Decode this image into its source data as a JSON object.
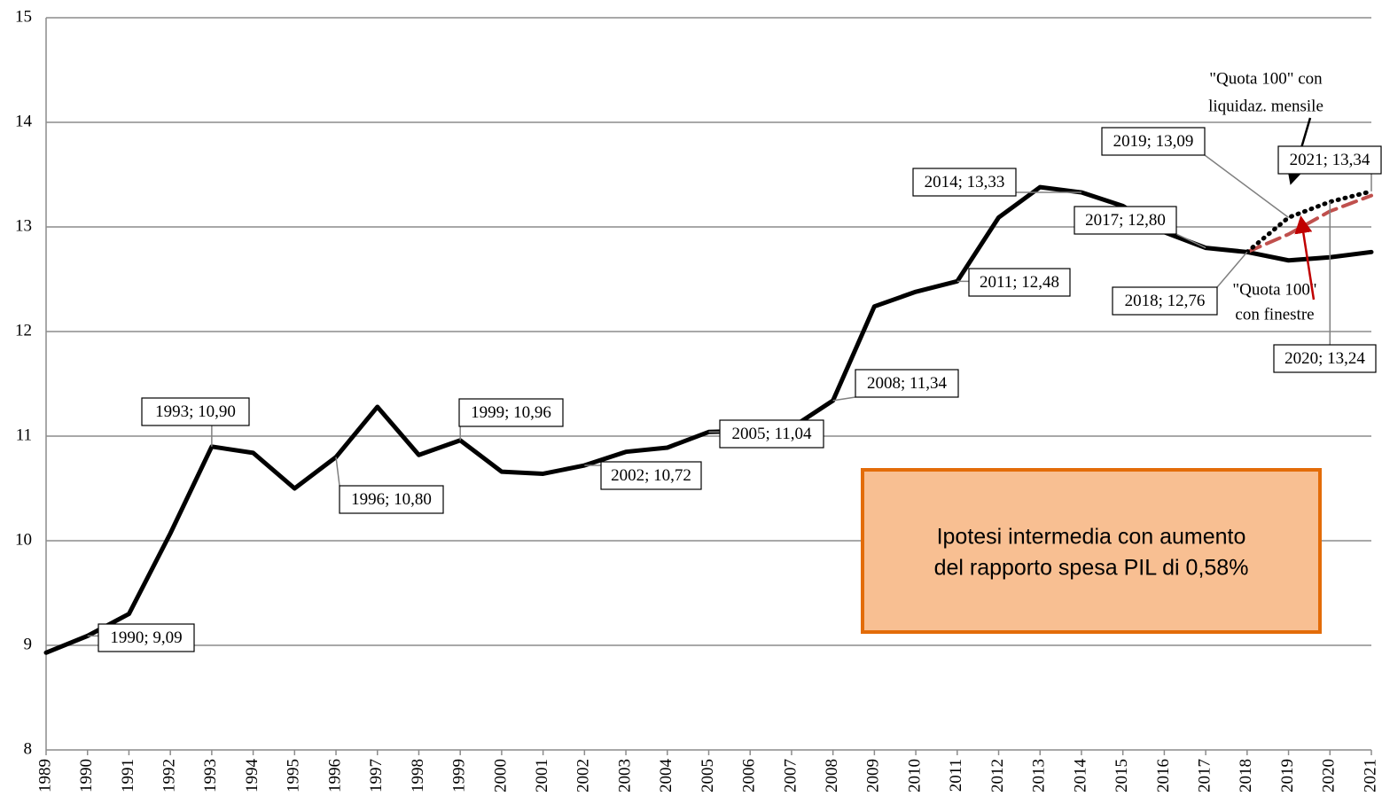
{
  "chart_data": {
    "type": "line",
    "x": [
      1989,
      1990,
      1991,
      1992,
      1993,
      1994,
      1995,
      1996,
      1997,
      1998,
      1999,
      2000,
      2001,
      2002,
      2003,
      2004,
      2005,
      2006,
      2007,
      2008,
      2009,
      2010,
      2011,
      2012,
      2013,
      2014,
      2015,
      2016,
      2017,
      2018,
      2019,
      2020,
      2021
    ],
    "xlim": [
      1989,
      2021
    ],
    "xticks": [
      1989,
      1990,
      1991,
      1992,
      1993,
      1994,
      1995,
      1996,
      1997,
      1998,
      1999,
      2000,
      2001,
      2002,
      2003,
      2004,
      2005,
      2006,
      2007,
      2008,
      2009,
      2010,
      2011,
      2012,
      2013,
      2014,
      2015,
      2016,
      2017,
      2018,
      2019,
      2020,
      2021
    ],
    "ylim": [
      8,
      15
    ],
    "yticks": [
      8,
      9,
      10,
      11,
      12,
      13,
      14,
      15
    ],
    "grid": true,
    "series": [
      {
        "color": "#000000",
        "dash": "solid",
        "values": [
          8.93,
          9.09,
          9.3,
          10.07,
          10.9,
          10.84,
          10.5,
          10.8,
          11.28,
          10.82,
          10.96,
          10.66,
          10.64,
          10.72,
          10.85,
          10.89,
          11.04,
          11.05,
          11.08,
          11.34,
          12.24,
          12.38,
          12.48,
          13.09,
          13.38,
          13.33,
          13.2,
          12.95,
          12.8,
          12.76,
          12.68,
          12.71,
          12.76
        ],
        "value_labels": [
          null,
          "1990; 9,09",
          null,
          null,
          "1993; 10,90",
          null,
          null,
          "1996; 10,80",
          null,
          null,
          "1999; 10,96",
          null,
          null,
          "2002; 10,72",
          null,
          null,
          "2005; 11,04",
          null,
          null,
          "2008; 11,34",
          null,
          null,
          "2011; 12,48",
          null,
          null,
          "2014; 13,33",
          null,
          null,
          "2017; 12,80",
          "2018; 12,76",
          null,
          null,
          null
        ]
      },
      {
        "color": "#000000",
        "dash": "dotted",
        "values": [
          null,
          null,
          null,
          null,
          null,
          null,
          null,
          null,
          null,
          null,
          null,
          null,
          null,
          null,
          null,
          null,
          null,
          null,
          null,
          null,
          null,
          null,
          null,
          null,
          null,
          null,
          null,
          null,
          null,
          12.76,
          13.09,
          13.24,
          13.34
        ],
        "value_labels": [
          null,
          null,
          null,
          null,
          null,
          null,
          null,
          null,
          null,
          null,
          null,
          null,
          null,
          null,
          null,
          null,
          null,
          null,
          null,
          null,
          null,
          null,
          null,
          null,
          null,
          null,
          null,
          null,
          null,
          null,
          "2019; 13,09",
          "2020; 13,24",
          "2021; 13,34"
        ]
      },
      {
        "color": "#c0504d",
        "dash": "dashed",
        "values": [
          null,
          null,
          null,
          null,
          null,
          null,
          null,
          null,
          null,
          null,
          null,
          null,
          null,
          null,
          null,
          null,
          null,
          null,
          null,
          null,
          null,
          null,
          null,
          null,
          null,
          null,
          null,
          null,
          null,
          12.76,
          12.93,
          13.15,
          13.3
        ]
      }
    ],
    "annotations": [
      "\"Quota 100\"  con",
      "liquidaz. mensile",
      "\"Quota 100\"",
      "con finestre",
      "Ipotesi intermedia con aumento",
      "del rapporto spesa PIL di 0,58%"
    ]
  }
}
